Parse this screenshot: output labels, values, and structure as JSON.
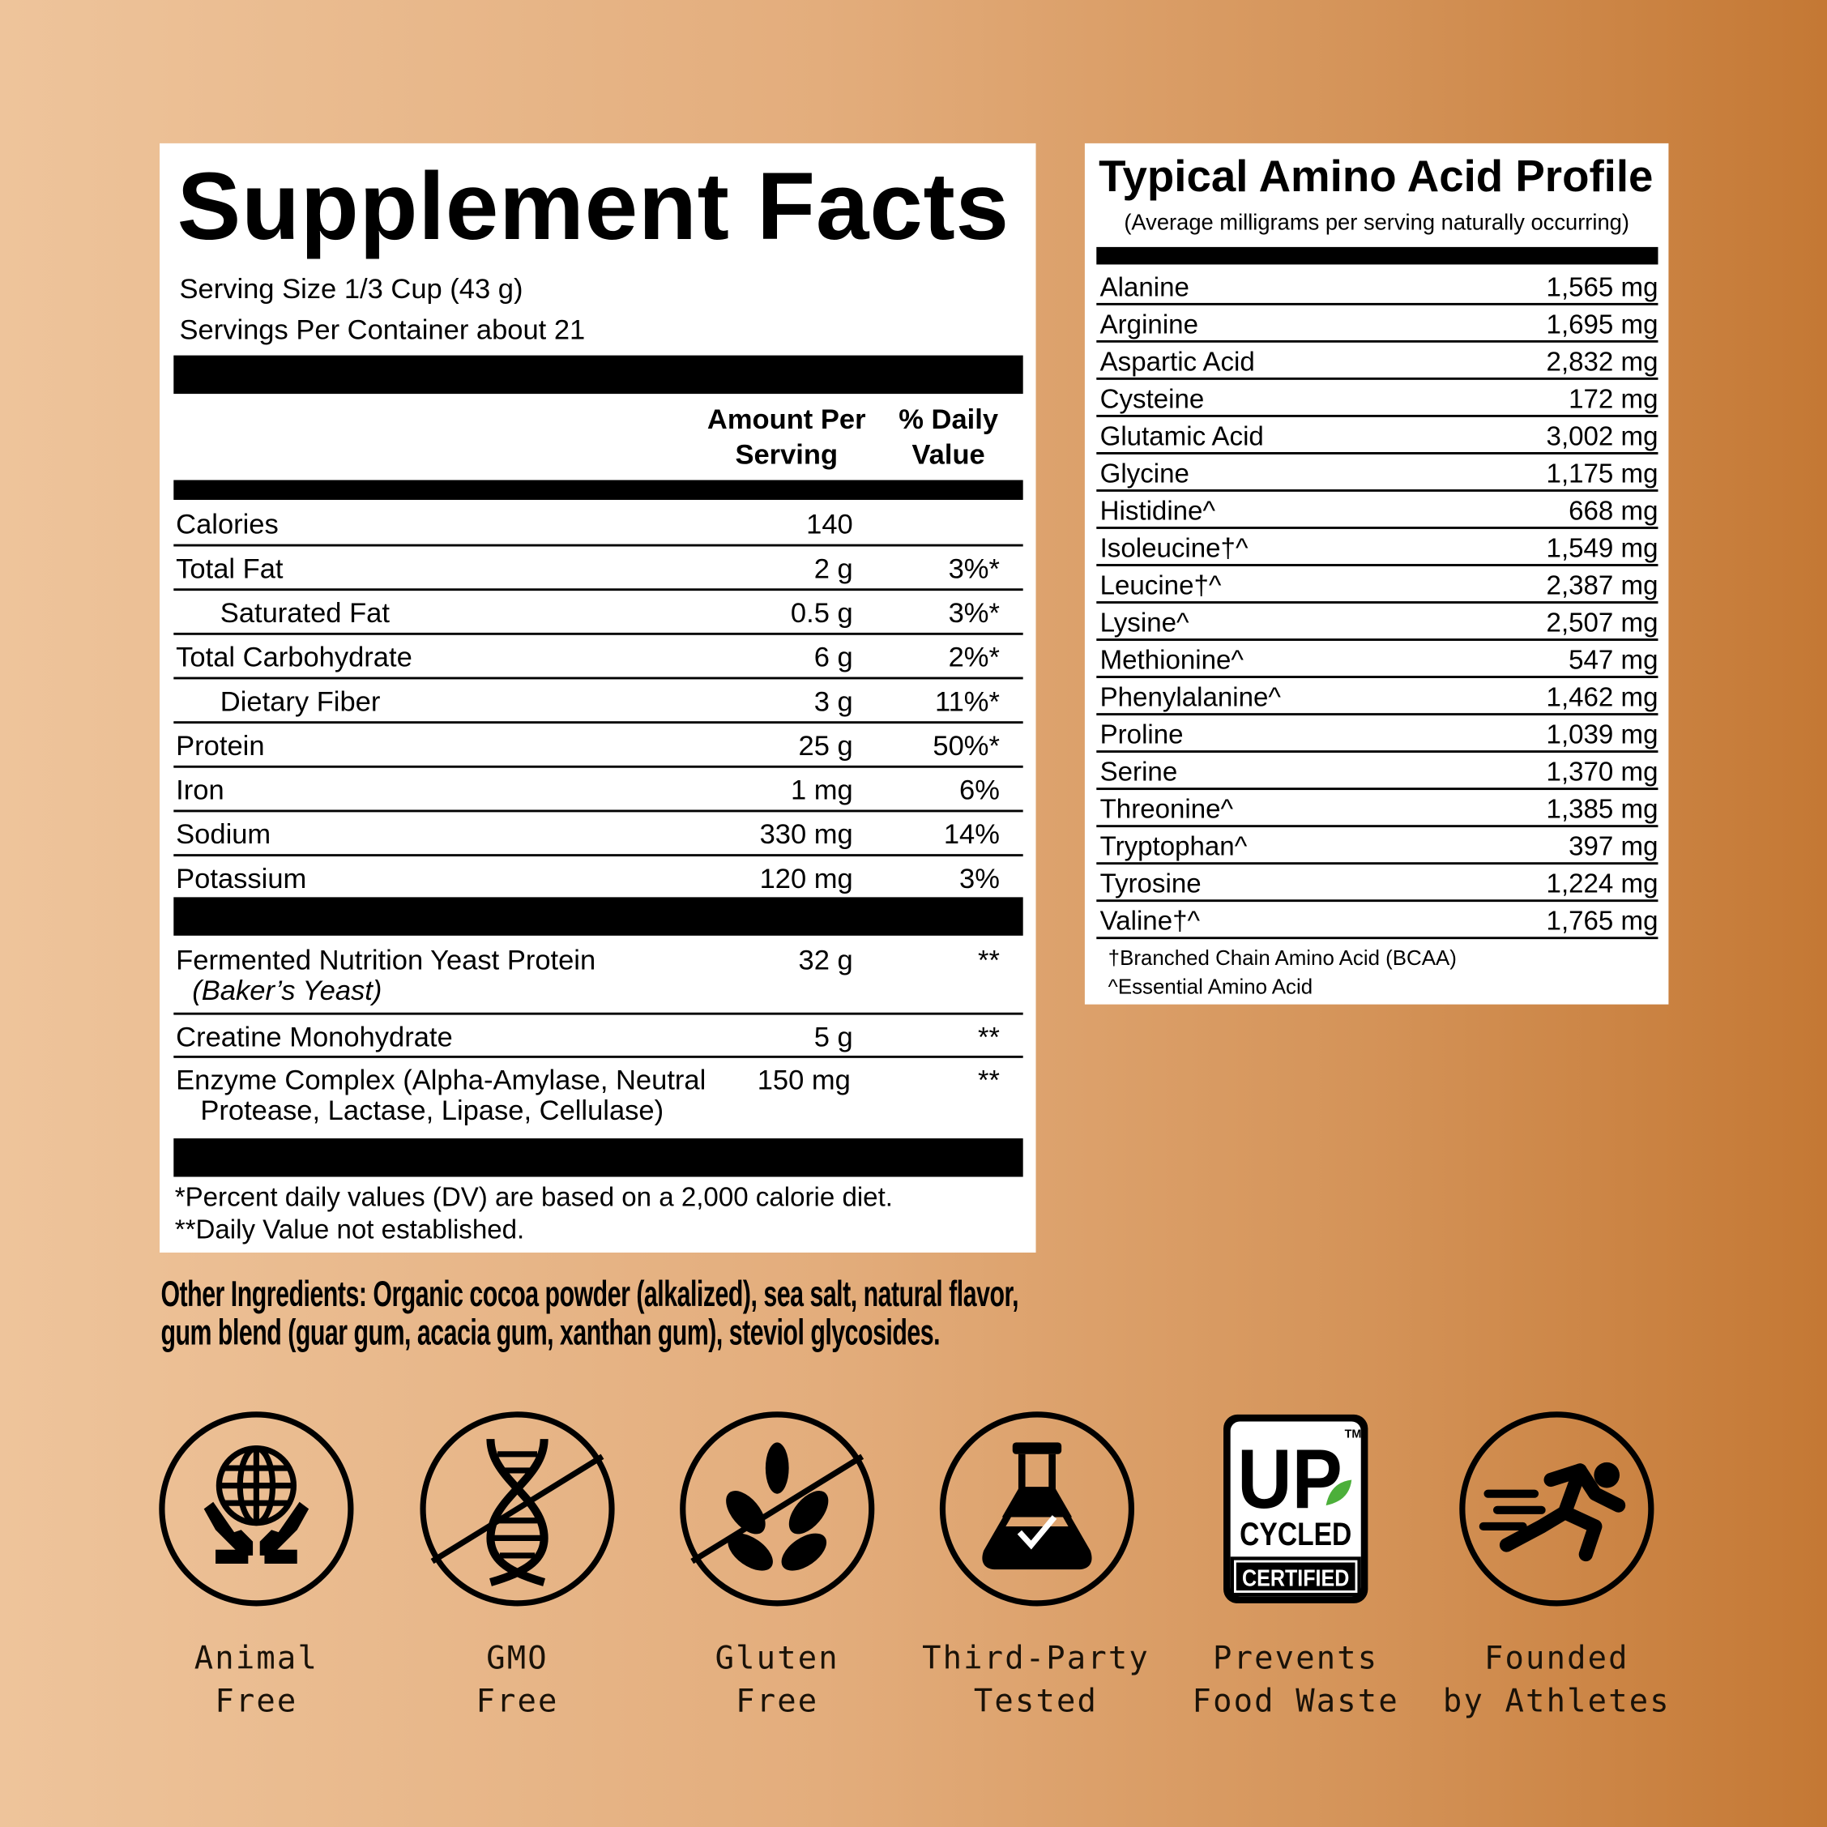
{
  "supplement_facts": {
    "title": "Supplement Facts",
    "serving_size": "Serving Size 1/3 Cup (43 g)",
    "servings_per_container": "Servings Per Container about 21",
    "col_amount": [
      "Amount Per",
      "Serving"
    ],
    "col_dv": [
      "% Daily",
      "Value"
    ],
    "rows": [
      {
        "name": "Calories",
        "amount": "140",
        "dv": ""
      },
      {
        "name": "Total Fat",
        "amount": "2 g",
        "dv": "3%*"
      },
      {
        "name": "Saturated Fat",
        "amount": "0.5 g",
        "dv": "3%*",
        "indent": true
      },
      {
        "name": "Total Carbohydrate",
        "amount": "6 g",
        "dv": "2%*"
      },
      {
        "name": "Dietary Fiber",
        "amount": "3 g",
        "dv": "11%*",
        "indent": true
      },
      {
        "name": "Protein",
        "amount": "25 g",
        "dv": "50%*"
      },
      {
        "name": "Iron",
        "amount": "1 mg",
        "dv": "6%"
      },
      {
        "name": "Sodium",
        "amount": "330 mg",
        "dv": "14%"
      },
      {
        "name": "Potassium",
        "amount": "120 mg",
        "dv": "3%"
      }
    ],
    "other_rows": [
      {
        "name": "Fermented Nutrition Yeast Protein",
        "sub": "(Baker’s Yeast)",
        "amount": "32 g",
        "dv": "**"
      },
      {
        "name": "Creatine Monohydrate",
        "amount": "5 g",
        "dv": "**"
      },
      {
        "name": "Enzyme Complex (Alpha-Amylase, Neutral",
        "name2": "Protease, Lactase, Lipase, Cellulase)",
        "amount": "150 mg",
        "dv": "**"
      }
    ],
    "footnote1": "*Percent daily values (DV) are based on a 2,000 calorie diet.",
    "footnote2": "**Daily Value not established."
  },
  "amino": {
    "title": "Typical Amino Acid Profile",
    "subtitle": "(Average milligrams per serving naturally occurring)",
    "rows": [
      {
        "name": "Alanine",
        "value": "1,565 mg"
      },
      {
        "name": "Arginine",
        "value": "1,695 mg"
      },
      {
        "name": "Aspartic Acid",
        "value": "2,832 mg"
      },
      {
        "name": "Cysteine",
        "value": "172 mg"
      },
      {
        "name": "Glutamic Acid",
        "value": "3,002 mg"
      },
      {
        "name": "Glycine",
        "value": "1,175 mg"
      },
      {
        "name": "Histidine^",
        "value": "668 mg"
      },
      {
        "name": "Isoleucine†^",
        "value": "1,549 mg"
      },
      {
        "name": "Leucine†^",
        "value": "2,387 mg"
      },
      {
        "name": "Lysine^",
        "value": "2,507 mg"
      },
      {
        "name": "Methionine^",
        "value": "547 mg"
      },
      {
        "name": "Phenylalanine^",
        "value": "1,462 mg"
      },
      {
        "name": "Proline",
        "value": "1,039 mg"
      },
      {
        "name": "Serine",
        "value": "1,370 mg"
      },
      {
        "name": "Threonine^",
        "value": "1,385 mg"
      },
      {
        "name": "Tryptophan^",
        "value": "397 mg"
      },
      {
        "name": "Tyrosine",
        "value": "1,224 mg"
      },
      {
        "name": "Valine†^",
        "value": "1,765 mg"
      }
    ],
    "footnote1": "†Branched Chain Amino Acid (BCAA)",
    "footnote2": "^Essential Amino Acid"
  },
  "ingredients": {
    "line1": "Other Ingredients: Organic cocoa powder (alkalized), sea salt, natural flavor,",
    "line2": "gum blend (guar gum, acacia gum, xanthan gum), steviol glycosides."
  },
  "badges": [
    {
      "icon": "hands-globe-icon",
      "line1": "Animal",
      "line2": "Free"
    },
    {
      "icon": "dna-crossed-icon",
      "line1": "GMO",
      "line2": "Free"
    },
    {
      "icon": "wheat-crossed-icon",
      "line1": "Gluten",
      "line2": "Free"
    },
    {
      "icon": "flask-check-icon",
      "line1": "Third-Party",
      "line2": "Tested"
    },
    {
      "icon": "upcycled-certified-logo",
      "line1": "Prevents",
      "line2": "Food Waste",
      "logo_text": [
        "UP",
        "CYCLED",
        "CERTIFIED",
        "TM"
      ]
    },
    {
      "icon": "running-athlete-icon",
      "line1": "Founded",
      "line2": "by Athletes"
    }
  ],
  "colors": {
    "bg_left": "#eec49b",
    "bg_right": "#c47834",
    "leaf_green": "#4caf3a"
  }
}
